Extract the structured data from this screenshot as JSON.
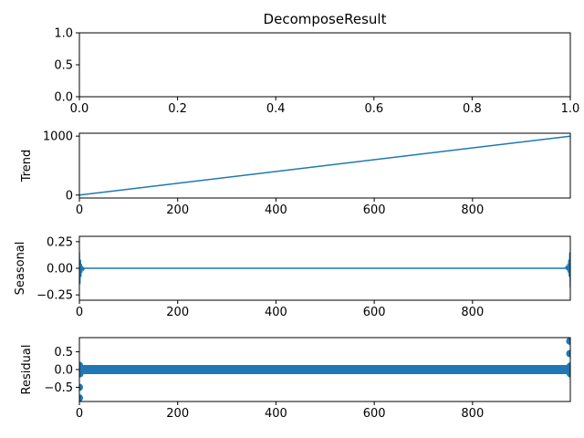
{
  "chart_data": {
    "type": "line",
    "title": "DecomposeResult",
    "color": "#1f77b4",
    "panels": [
      {
        "id": "observed",
        "ylabel": "",
        "xlim": [
          0.0,
          1.0
        ],
        "ylim": [
          0.0,
          1.0
        ],
        "xticks": [
          0.0,
          0.2,
          0.4,
          0.6,
          0.8,
          1.0
        ],
        "xtick_labels": [
          "0.0",
          "0.2",
          "0.4",
          "0.6",
          "0.8",
          "1.0"
        ],
        "yticks": [
          0.0,
          0.5,
          1.0
        ],
        "ytick_labels": [
          "0.0",
          "0.5",
          "1.0"
        ],
        "kind": "empty"
      },
      {
        "id": "trend",
        "ylabel": "Trend",
        "xlim": [
          0,
          999
        ],
        "ylim": [
          -50,
          1049
        ],
        "xticks": [
          0,
          200,
          400,
          600,
          800
        ],
        "xtick_labels": [
          "0",
          "200",
          "400",
          "600",
          "800"
        ],
        "yticks": [
          0,
          1000
        ],
        "ytick_labels": [
          "0",
          "1000"
        ],
        "kind": "line",
        "x": [
          0,
          999
        ],
        "y": [
          0,
          999
        ]
      },
      {
        "id": "seasonal",
        "ylabel": "Seasonal",
        "xlim": [
          0,
          999
        ],
        "ylim": [
          -0.3,
          0.3
        ],
        "xticks": [
          0,
          200,
          400,
          600,
          800
        ],
        "xtick_labels": [
          "0",
          "200",
          "400",
          "600",
          "800"
        ],
        "yticks": [
          -0.25,
          0.0,
          0.25
        ],
        "ytick_labels": [
          "−0.25",
          "0.00",
          "0.25"
        ],
        "kind": "line",
        "x": [
          0,
          1,
          2,
          3,
          4,
          5,
          6,
          7,
          8,
          9,
          10,
          12,
          500,
          987,
          989,
          990,
          991,
          992,
          993,
          994,
          995,
          996,
          997,
          998,
          999
        ],
        "y": [
          0.15,
          -0.15,
          0.08,
          -0.08,
          0.04,
          -0.04,
          0.02,
          -0.02,
          0.01,
          -0.01,
          0.0,
          0.0,
          0.0,
          0.0,
          0.0,
          0.01,
          -0.01,
          0.02,
          -0.02,
          0.04,
          -0.04,
          0.08,
          -0.08,
          0.15,
          -0.18
        ]
      },
      {
        "id": "residual",
        "ylabel": "Residual",
        "xlim": [
          0,
          999
        ],
        "ylim": [
          -0.9,
          0.9
        ],
        "xticks": [
          0,
          200,
          400,
          600,
          800
        ],
        "xtick_labels": [
          "0",
          "200",
          "400",
          "600",
          "800"
        ],
        "yticks": [
          -0.5,
          0.0,
          0.5
        ],
        "ytick_labels": [
          "−0.5",
          "0.0",
          "0.5"
        ],
        "kind": "scatter",
        "baseline": 0.0,
        "baseline_from": 0,
        "baseline_to": 999,
        "outliers": [
          {
            "x": 0,
            "y": -0.5
          },
          {
            "x": 0,
            "y": -0.8
          },
          {
            "x": 0,
            "y": 0.12
          },
          {
            "x": 1,
            "y": -0.12
          },
          {
            "x": 998,
            "y": 0.8
          },
          {
            "x": 998,
            "y": 0.45
          },
          {
            "x": 999,
            "y": -0.12
          },
          {
            "x": 999,
            "y": 0.1
          }
        ]
      }
    ]
  }
}
